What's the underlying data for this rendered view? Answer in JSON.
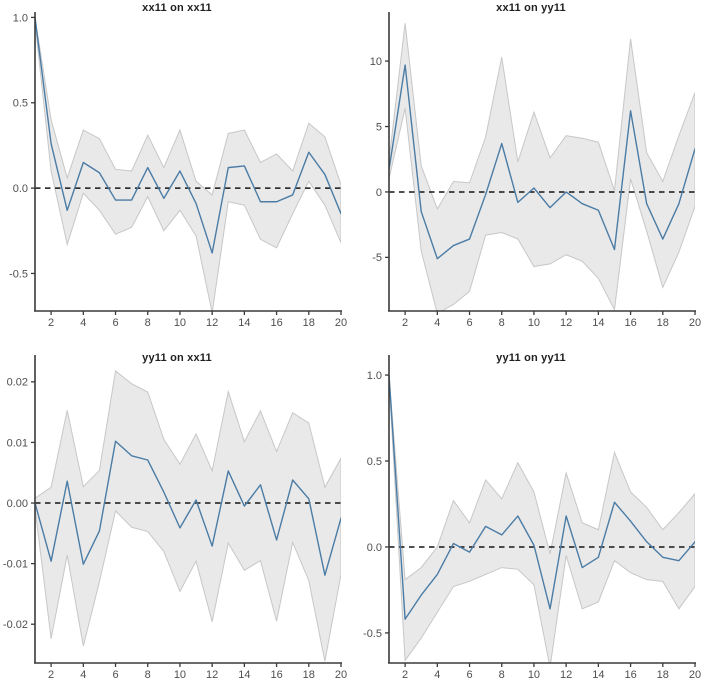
{
  "page": {
    "background": "#ffffff"
  },
  "colors": {
    "line": "#4b7ca5",
    "band_fill": "#e9e9e9",
    "band_edge": "#c7c7c7",
    "zero_dash": "#151515",
    "axis": "#3a3a3a",
    "tick_label": "#4f4f4f",
    "title": "#1f1f1f"
  },
  "chart_data": [
    {
      "type": "line",
      "title": "xx11 on xx11",
      "xlabel": "",
      "ylabel": "",
      "grid": false,
      "legend_position": "none",
      "x": [
        1,
        2,
        3,
        4,
        5,
        6,
        7,
        8,
        9,
        10,
        11,
        12,
        13,
        14,
        15,
        16,
        17,
        18,
        19,
        20
      ],
      "xlim": [
        1,
        20
      ],
      "ylim": [
        -0.72,
        1.02
      ],
      "xticks": [
        2,
        4,
        6,
        8,
        10,
        12,
        14,
        16,
        18,
        20
      ],
      "yticks": [
        {
          "value": 1.0,
          "label": "1.0"
        },
        {
          "value": 0.5,
          "label": "0.5"
        },
        {
          "value": 0.0,
          "label": "0.0"
        },
        {
          "value": -0.5,
          "label": "-0.5"
        }
      ],
      "zero_line": 0,
      "series": [
        {
          "name": "irf",
          "values": [
            1.0,
            0.26,
            -0.13,
            0.15,
            0.09,
            -0.07,
            -0.07,
            0.12,
            -0.06,
            0.1,
            -0.09,
            -0.38,
            0.12,
            0.13,
            -0.08,
            -0.08,
            -0.04,
            0.21,
            0.08,
            -0.15
          ]
        },
        {
          "name": "upper_ci",
          "values": [
            1.0,
            0.4,
            0.06,
            0.34,
            0.29,
            0.11,
            0.1,
            0.31,
            0.12,
            0.34,
            0.04,
            -0.04,
            0.32,
            0.34,
            0.15,
            0.2,
            0.1,
            0.38,
            0.3,
            0.02
          ]
        },
        {
          "name": "lower_ci",
          "values": [
            0.97,
            0.1,
            -0.33,
            -0.03,
            -0.13,
            -0.27,
            -0.23,
            -0.05,
            -0.25,
            -0.13,
            -0.28,
            -0.73,
            -0.08,
            -0.1,
            -0.3,
            -0.35,
            -0.15,
            0.04,
            -0.1,
            -0.32
          ]
        }
      ]
    },
    {
      "type": "line",
      "title": "xx11 on yy11",
      "xlabel": "",
      "ylabel": "",
      "grid": false,
      "legend_position": "none",
      "x": [
        1,
        2,
        3,
        4,
        5,
        6,
        7,
        8,
        9,
        10,
        11,
        12,
        13,
        14,
        15,
        16,
        17,
        18,
        19,
        20
      ],
      "xlim": [
        1,
        20
      ],
      "ylim": [
        -9.1,
        13.6
      ],
      "xticks": [
        2,
        4,
        6,
        8,
        10,
        12,
        14,
        16,
        18,
        20
      ],
      "yticks": [
        {
          "value": 10,
          "label": "10"
        },
        {
          "value": 5,
          "label": "5"
        },
        {
          "value": 0,
          "label": "0"
        },
        {
          "value": -5,
          "label": "-5"
        }
      ],
      "zero_line": 0,
      "series": [
        {
          "name": "irf",
          "values": [
            1.7,
            9.7,
            -1.5,
            -5.1,
            -4.1,
            -3.6,
            -0.2,
            3.7,
            -0.8,
            0.3,
            -1.2,
            0.0,
            -0.9,
            -1.4,
            -4.4,
            6.2,
            -0.9,
            -3.6,
            -0.9,
            3.3
          ]
        },
        {
          "name": "upper_ci",
          "values": [
            2.4,
            12.9,
            2.0,
            -1.3,
            0.8,
            0.7,
            4.2,
            10.3,
            2.3,
            6.1,
            2.6,
            4.3,
            4.1,
            3.8,
            0.1,
            11.7,
            3.0,
            0.8,
            4.3,
            7.6
          ]
        },
        {
          "name": "lower_ci",
          "values": [
            1.0,
            6.4,
            -4.5,
            -9.3,
            -8.6,
            -7.6,
            -3.3,
            -3.1,
            -3.6,
            -5.7,
            -5.5,
            -4.8,
            -5.3,
            -6.6,
            -9.0,
            1.0,
            -3.0,
            -7.3,
            -4.6,
            -1.1
          ]
        }
      ]
    },
    {
      "type": "line",
      "title": "yy11 on xx11",
      "xlabel": "",
      "ylabel": "",
      "grid": false,
      "legend_position": "none",
      "x": [
        1,
        2,
        3,
        4,
        5,
        6,
        7,
        8,
        9,
        10,
        11,
        12,
        13,
        14,
        15,
        16,
        17,
        18,
        19,
        20
      ],
      "xlim": [
        1,
        20
      ],
      "ylim": [
        -0.0264,
        0.0241
      ],
      "xticks": [
        2,
        4,
        6,
        8,
        10,
        12,
        14,
        16,
        18,
        20
      ],
      "yticks": [
        {
          "value": 0.02,
          "label": "0.02"
        },
        {
          "value": 0.01,
          "label": "0.01"
        },
        {
          "value": 0.0,
          "label": "0.00"
        },
        {
          "value": -0.01,
          "label": "-0.01"
        },
        {
          "value": -0.02,
          "label": "-0.02"
        }
      ],
      "zero_line": 0,
      "series": [
        {
          "name": "irf",
          "values": [
            0.0,
            -0.0096,
            0.0036,
            -0.0101,
            -0.0046,
            0.0102,
            0.0078,
            0.0071,
            0.0018,
            -0.0041,
            0.0005,
            -0.0071,
            0.0053,
            -0.0005,
            0.003,
            -0.0061,
            0.0038,
            0.0007,
            -0.0119,
            -0.0025
          ]
        },
        {
          "name": "upper_ci",
          "values": [
            0.0008,
            0.0026,
            0.0153,
            0.0027,
            0.0054,
            0.0218,
            0.0197,
            0.0183,
            0.0105,
            0.0064,
            0.0114,
            0.0053,
            0.0184,
            0.0101,
            0.0152,
            0.0085,
            0.0149,
            0.0132,
            0.0026,
            0.0074
          ]
        },
        {
          "name": "lower_ci",
          "values": [
            -0.0008,
            -0.0224,
            -0.0086,
            -0.0236,
            -0.013,
            -0.0013,
            -0.004,
            -0.0047,
            -0.008,
            -0.0146,
            -0.0096,
            -0.0196,
            -0.0066,
            -0.0111,
            -0.0095,
            -0.0195,
            -0.0065,
            -0.0128,
            -0.0261,
            -0.0118
          ]
        }
      ]
    },
    {
      "type": "line",
      "title": "yy11 on yy11",
      "xlabel": "",
      "ylabel": "",
      "grid": false,
      "legend_position": "none",
      "x": [
        1,
        2,
        3,
        4,
        5,
        6,
        7,
        8,
        9,
        10,
        11,
        12,
        13,
        14,
        15,
        16,
        17,
        18,
        19,
        20
      ],
      "xlim": [
        1,
        20
      ],
      "ylim": [
        -0.675,
        1.105
      ],
      "xticks": [
        2,
        4,
        6,
        8,
        10,
        12,
        14,
        16,
        18,
        20
      ],
      "yticks": [
        {
          "value": 1.0,
          "label": "1.0"
        },
        {
          "value": 0.5,
          "label": "0.5"
        },
        {
          "value": 0.0,
          "label": "0.0"
        },
        {
          "value": -0.5,
          "label": "-0.5"
        }
      ],
      "zero_line": 0,
      "series": [
        {
          "name": "irf",
          "values": [
            1.0,
            -0.42,
            -0.28,
            -0.16,
            0.02,
            -0.03,
            0.12,
            0.07,
            0.18,
            0.01,
            -0.36,
            0.18,
            -0.12,
            -0.06,
            0.26,
            0.15,
            0.03,
            -0.06,
            -0.08,
            0.03
          ]
        },
        {
          "name": "upper_ci",
          "values": [
            1.0,
            -0.19,
            -0.12,
            0.0,
            0.27,
            0.14,
            0.39,
            0.28,
            0.49,
            0.32,
            -0.04,
            0.43,
            0.14,
            0.1,
            0.55,
            0.32,
            0.23,
            0.1,
            0.2,
            0.31
          ]
        },
        {
          "name": "lower_ci",
          "values": [
            0.97,
            -0.66,
            -0.53,
            -0.38,
            -0.23,
            -0.2,
            -0.16,
            -0.12,
            -0.13,
            -0.22,
            -0.7,
            -0.05,
            -0.36,
            -0.32,
            -0.08,
            -0.15,
            -0.19,
            -0.2,
            -0.36,
            -0.23
          ]
        }
      ]
    }
  ]
}
